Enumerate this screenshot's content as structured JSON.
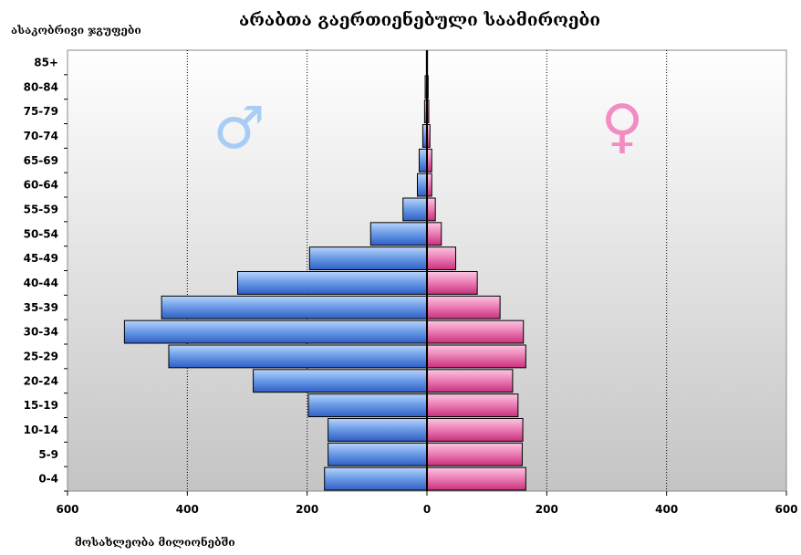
{
  "chart_data": {
    "type": "bar",
    "orientation": "horizontal-population-pyramid",
    "title": "არაბთა გაერთიენებული საამიროები",
    "ylabel": "ასაკობრივი ჯგუფები",
    "xlabel": "მოსახლეობა მილიონებში",
    "categories": [
      "0-4",
      "5-9",
      "10-14",
      "15-19",
      "20-24",
      "25-29",
      "30-34",
      "35-39",
      "40-44",
      "45-49",
      "50-54",
      "55-59",
      "60-64",
      "65-69",
      "70-74",
      "75-79",
      "80-84",
      "85+"
    ],
    "series": [
      {
        "name": "♂",
        "color": "#6f9fe8",
        "values": [
          171,
          165,
          165,
          198,
          290,
          431,
          505,
          443,
          316,
          196,
          94,
          40,
          16,
          13,
          7,
          4,
          3,
          1
        ]
      },
      {
        "name": "♀",
        "color": "#ec82b8",
        "values": [
          165,
          159,
          160,
          152,
          143,
          165,
          161,
          122,
          84,
          48,
          24,
          14,
          8,
          8,
          5,
          3,
          2,
          1
        ]
      }
    ],
    "xlim": [
      -600,
      600
    ],
    "xticks": [
      600,
      400,
      200,
      0,
      200,
      400,
      600
    ],
    "grid": true,
    "male_symbol_color": "#a8cdf5",
    "female_symbol_color": "#f48cc4"
  }
}
